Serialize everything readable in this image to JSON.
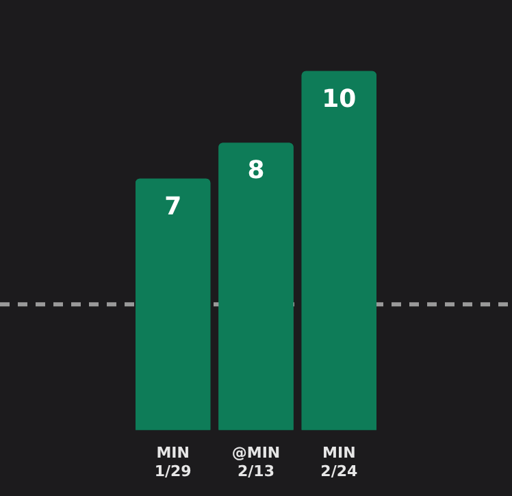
{
  "chart_data": {
    "type": "bar",
    "categories": [
      "MIN\n1/29",
      "@MIN\n2/13",
      "MIN\n2/24"
    ],
    "values": [
      7,
      8,
      10
    ],
    "color": "#0e7c58",
    "tick_labels": "x",
    "data_labels": true,
    "ref_lines": [
      {
        "axis": "y",
        "value": 3.5,
        "color": "#9a9a9a",
        "line_style": "dashed"
      }
    ]
  }
}
